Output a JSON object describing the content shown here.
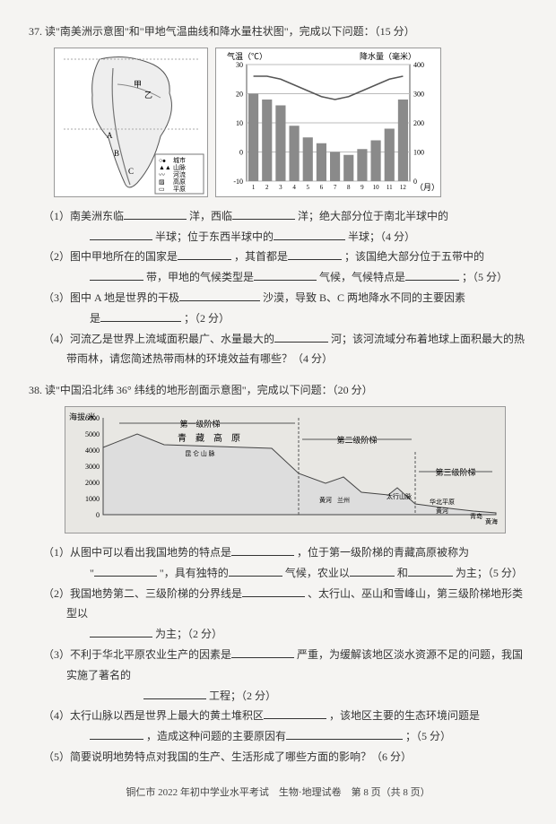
{
  "q37": {
    "number": "37.",
    "prompt": "读\"南美洲示意图\"和\"甲地气温曲线和降水量柱状图\"，完成以下问题：（15 分）",
    "map": {
      "labels": {
        "jia": "甲",
        "yi": "乙",
        "A": "A",
        "B": "B",
        "C": "C"
      },
      "legend": [
        "城市",
        "山脉",
        "河流",
        "高原",
        "平原"
      ],
      "legend_title": "图例"
    },
    "chart": {
      "temp_label": "气温（℃）",
      "precip_label": "降水量（毫米）",
      "x_label": "（月）",
      "months": [
        "1",
        "2",
        "3",
        "4",
        "5",
        "6",
        "7",
        "8",
        "9",
        "10",
        "11",
        "12"
      ],
      "temp_ticks": [
        -10,
        0,
        10,
        20,
        30
      ],
      "precip_ticks": [
        0,
        100,
        200,
        300,
        400
      ],
      "bar_values": [
        300,
        280,
        260,
        190,
        150,
        130,
        100,
        90,
        110,
        140,
        180,
        280
      ],
      "temp_values": [
        26,
        26,
        25,
        23,
        21,
        19,
        18,
        19,
        21,
        23,
        25,
        26
      ],
      "bar_color": "#8a8a8a",
      "line_color": "#555",
      "grid_color": "#bbb"
    },
    "subs": {
      "s1a": "（1）南美洲东临",
      "s1b": "洋，西临",
      "s1c": "洋；绝大部分位于南北半球中的",
      "s1d": "半球；位于东西半球中的",
      "s1e": "半球；（4 分）",
      "s2a": "（2）图中甲地所在的国家是",
      "s2b": "，其首都是",
      "s2c": "；该国绝大部分位于五带中的",
      "s2d": "带，甲地的气候类型是",
      "s2e": "气候，气候特点是",
      "s2f": "；（5 分）",
      "s3a": "（3）图中 A 地是世界的干极",
      "s3b": "沙漠，导致 B、C 两地降水不同的主要因素",
      "s3c": "是",
      "s3d": "；（2 分）",
      "s4a": "（4）河流乙是世界上流域面积最广、水量最大的",
      "s4b": "河；该河流域分布着地球上面积最大的热带雨林，请您简述热带雨林的环境效益有哪些？（4 分）"
    }
  },
  "q38": {
    "number": "38.",
    "prompt": "读\"中国沿北纬 36° 纬线的地形剖面示意图\"，完成以下问题：（20 分）",
    "profile": {
      "y_label": "海拔/米",
      "y_ticks": [
        0,
        1000,
        2000,
        3000,
        4000,
        5000,
        6000
      ],
      "labels": {
        "step1": "第一级阶梯",
        "step2": "第二级阶梯",
        "step3": "第三级阶梯",
        "plateau": "青　藏　高　原",
        "kunlun": "昆 仑 山 脉",
        "huanghe": "黄河",
        "lanzhou": "兰州",
        "taihang": "太行山脉",
        "huabei": "华北平原",
        "qingdao": "青岛",
        "huanghai": "黄海",
        "huanghe2": "黄河"
      },
      "sky_color": "#e8e7e3",
      "ground_color": "#ddd",
      "line_color": "#444"
    },
    "subs": {
      "s1a": "（1）从图中可以看出我国地势的特点是",
      "s1b": "，位于第一级阶梯的青藏高原被称为",
      "s1c": "\"",
      "s1d": "\"，具有独特的",
      "s1e": "气候，农业以",
      "s1f": "和",
      "s1g": "为主；（5 分）",
      "s2a": "（2）我国地势第二、三级阶梯的分界线是",
      "s2b": "、太行山、巫山和雪峰山，第三级阶梯地形类型以",
      "s2c": "为主；（2 分）",
      "s3a": "（3）不利于华北平原农业生产的因素是",
      "s3b": "严重，为缓解该地区淡水资源不足的问题，我国实施了著名的",
      "s3c": "工程；（2 分）",
      "s4a": "（4）太行山脉以西是世界上最大的黄土堆积区",
      "s4b": "，该地区主要的生态环境问题是",
      "s4c": "，造成这种问题的主要原因有",
      "s4d": "；（5 分）",
      "s5a": "（5）简要说明地势特点对我国的生产、生活形成了哪些方面的影响？（6 分）"
    }
  },
  "footer": "铜仁市 2022 年初中学业水平考试　生物·地理试卷　第 8 页（共 8 页）"
}
